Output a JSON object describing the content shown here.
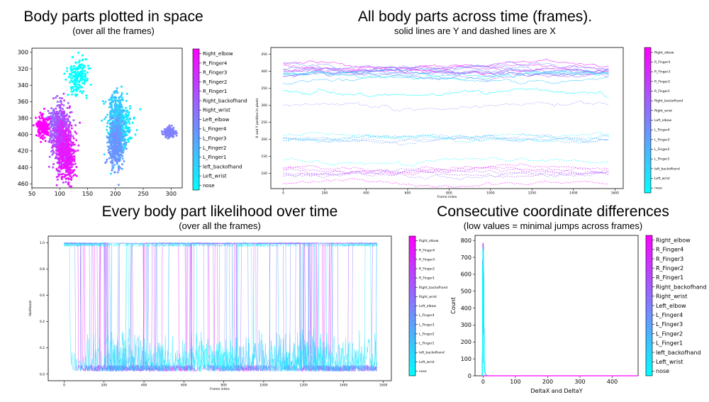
{
  "panels": {
    "p1": {
      "title": "Body parts plotted in space",
      "subtitle": "(over all the frames)"
    },
    "p2": {
      "title": "All body parts across time (frames).",
      "subtitle": "solid lines are Y and dashed lines are X"
    },
    "p3": {
      "title": "Every body part likelihood over time",
      "subtitle": "(over all the frames)"
    },
    "p4": {
      "title": "Consecutive coordinate differences",
      "subtitle": "(low values = minimal jumps across frames)"
    }
  },
  "colorbar_labels": [
    "Right_elbow",
    "R_Finger4",
    "R_Finger3",
    "R_Finger2",
    "R_Finger1",
    "Right_backofhand",
    "Right_wrist",
    "Left_elbow",
    "L_Finger4",
    "L_Finger3",
    "L_Finger2",
    "L_Finger1",
    "left_backofhand",
    "Left_wrist",
    "nose"
  ],
  "colors": {
    "top": "#ff00ff",
    "bottom": "#00ffff"
  },
  "chart_data": [
    {
      "type": "scatter",
      "title": "Body parts plotted in space",
      "subtitle": "(over all the frames)",
      "xlim": [
        50,
        320
      ],
      "ylim": [
        465,
        295
      ],
      "xticks": [
        50,
        100,
        150,
        200,
        250,
        300
      ],
      "yticks": [
        300,
        320,
        340,
        360,
        380,
        400,
        420,
        440,
        460
      ],
      "clusters": [
        {
          "label": "nose",
          "cx": 133,
          "cy": 330,
          "sx": 9,
          "sy": 11
        },
        {
          "label": "left_backofhand",
          "cx": 201,
          "cy": 392,
          "sx": 8,
          "sy": 19
        },
        {
          "label": "Left_wrist",
          "cx": 212,
          "cy": 388,
          "sx": 9,
          "sy": 14
        },
        {
          "label": "L_Finger1",
          "cx": 202,
          "cy": 375,
          "sx": 7,
          "sy": 15
        },
        {
          "label": "L_Finger2",
          "cx": 203,
          "cy": 398,
          "sx": 7,
          "sy": 14
        },
        {
          "label": "L_Finger3",
          "cx": 201,
          "cy": 408,
          "sx": 6,
          "sy": 13
        },
        {
          "label": "L_Finger4",
          "cx": 199,
          "cy": 415,
          "sx": 6,
          "sy": 13
        },
        {
          "label": "Left_elbow",
          "cx": 298,
          "cy": 398,
          "sx": 5,
          "sy": 3
        },
        {
          "label": "Right_wrist",
          "cx": 95,
          "cy": 385,
          "sx": 8,
          "sy": 12
        },
        {
          "label": "Right_backofhand",
          "cx": 100,
          "cy": 395,
          "sx": 9,
          "sy": 16
        },
        {
          "label": "R_Finger1",
          "cx": 104,
          "cy": 400,
          "sx": 9,
          "sy": 18
        },
        {
          "label": "R_Finger2",
          "cx": 107,
          "cy": 410,
          "sx": 9,
          "sy": 19
        },
        {
          "label": "R_Finger3",
          "cx": 110,
          "cy": 418,
          "sx": 9,
          "sy": 19
        },
        {
          "label": "R_Finger4",
          "cx": 113,
          "cy": 430,
          "sx": 9,
          "sy": 17
        },
        {
          "label": "Right_elbow",
          "cx": 70,
          "cy": 390,
          "sx": 6,
          "sy": 7
        }
      ]
    },
    {
      "type": "line",
      "title": "All body parts across time (frames).",
      "subtitle": "solid lines are Y and dashed lines are X",
      "xlabel": "Frame index",
      "ylabel": "X and Y position in pixels",
      "xlim": [
        -60,
        1640
      ],
      "ylim": [
        55,
        470
      ],
      "xticks": [
        0,
        200,
        400,
        600,
        800,
        1000,
        1200,
        1400,
        1600
      ],
      "yticks": [
        100,
        150,
        200,
        250,
        300,
        350,
        400,
        450
      ],
      "frames": 1570,
      "series_levels": [
        {
          "label": "Right_elbow",
          "y": 400,
          "x": 70
        },
        {
          "label": "R_Finger4",
          "y": 418,
          "x": 113
        },
        {
          "label": "R_Finger3",
          "y": 410,
          "x": 110
        },
        {
          "label": "R_Finger2",
          "y": 405,
          "x": 107
        },
        {
          "label": "R_Finger1",
          "y": 398,
          "x": 104
        },
        {
          "label": "Right_backofhand",
          "y": 395,
          "x": 100
        },
        {
          "label": "Right_wrist",
          "y": 385,
          "x": 95
        },
        {
          "label": "Left_elbow",
          "y": 398,
          "x": 298
        },
        {
          "label": "L_Finger4",
          "y": 415,
          "x": 199
        },
        {
          "label": "L_Finger3",
          "y": 405,
          "x": 201
        },
        {
          "label": "L_Finger2",
          "y": 398,
          "x": 203
        },
        {
          "label": "L_Finger1",
          "y": 375,
          "x": 202
        },
        {
          "label": "left_backofhand",
          "y": 392,
          "x": 201
        },
        {
          "label": "Left_wrist",
          "y": 388,
          "x": 212
        },
        {
          "label": "nose",
          "y": 335,
          "x": 133
        }
      ]
    },
    {
      "type": "line",
      "title": "Every body part likelihood over time",
      "subtitle": "(over all the frames)",
      "xlabel": "Frame index",
      "ylabel": "likelihood",
      "xlim": [
        -80,
        1640
      ],
      "ylim": [
        -0.05,
        1.05
      ],
      "xticks": [
        0,
        200,
        400,
        600,
        800,
        1000,
        1200,
        1400,
        1600
      ],
      "yticks": [
        0.0,
        0.2,
        0.4,
        0.6,
        0.8,
        1.0
      ],
      "frames": 1570
    },
    {
      "type": "bar",
      "title": "Consecutive coordinate differences",
      "subtitle": "(low values = minimal jumps across frames)",
      "xlabel": "DeltaX and DeltaY",
      "ylabel": "Count",
      "xlim": [
        -25,
        480
      ],
      "ylim": [
        0,
        830
      ],
      "xticks": [
        0,
        100,
        200,
        300,
        400
      ],
      "yticks": [
        0,
        100,
        200,
        300,
        400,
        500,
        600,
        700,
        800
      ],
      "peak": {
        "x": 0,
        "count": 785
      }
    }
  ]
}
